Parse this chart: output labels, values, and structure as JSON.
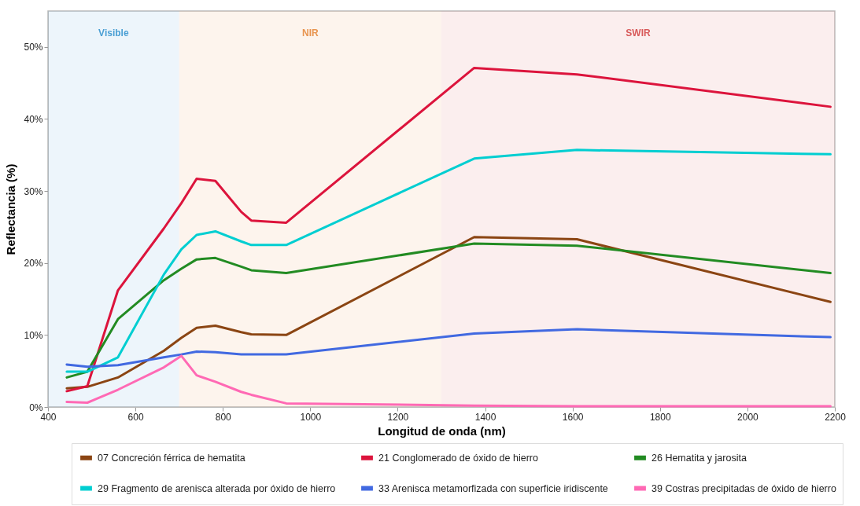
{
  "chart_data": {
    "type": "line",
    "xlabel": "Longitud de onda (nm)",
    "ylabel": "Reflectancia (%)",
    "x": [
      443,
      490,
      560,
      665,
      705,
      740,
      783,
      842,
      865,
      945,
      1375,
      1610,
      2190
    ],
    "series": [
      {
        "name": "07 Concreción férrica de hematita",
        "color": "#8b4513",
        "values": [
          2.6,
          2.8,
          4.1,
          7.8,
          9.6,
          11.0,
          11.3,
          10.4,
          10.1,
          10.0,
          23.6,
          23.3,
          14.6
        ]
      },
      {
        "name": "21 Conglomerado de óxido de hierro",
        "color": "#dc143c",
        "values": [
          2.2,
          2.9,
          16.2,
          24.8,
          28.3,
          31.7,
          31.4,
          27.1,
          25.9,
          25.6,
          47.1,
          46.2,
          41.7
        ]
      },
      {
        "name": "26 Hematita y jarosita",
        "color": "#228b22",
        "values": [
          4.1,
          4.9,
          12.2,
          17.6,
          19.2,
          20.5,
          20.7,
          19.5,
          19.0,
          18.6,
          22.7,
          22.4,
          18.6
        ]
      },
      {
        "name": "29 Fragmento de arenisca alterada por óxido de hierro",
        "color": "#00ced1",
        "values": [
          4.9,
          4.9,
          6.9,
          18.4,
          21.9,
          23.9,
          24.4,
          23.0,
          22.5,
          22.5,
          34.5,
          35.7,
          35.1
        ]
      },
      {
        "name": "33 Arenisca metamorfizada con superficie iridiscente",
        "color": "#4169e1",
        "values": [
          5.9,
          5.6,
          5.8,
          6.9,
          7.3,
          7.7,
          7.6,
          7.3,
          7.3,
          7.3,
          10.2,
          10.8,
          9.7
        ]
      },
      {
        "name": "39 Costras precipitadas de óxido de hierro",
        "color": "#ff69b4",
        "values": [
          0.7,
          0.6,
          2.4,
          5.5,
          7.1,
          4.4,
          3.5,
          2.1,
          1.7,
          0.5,
          0.2,
          0.1,
          0.1
        ]
      }
    ],
    "xlim": [
      400,
      2200
    ],
    "xticks": [
      400,
      600,
      800,
      1000,
      1200,
      1400,
      1600,
      1800,
      2000,
      2200
    ],
    "ylim": [
      0,
      55
    ],
    "yticks": [
      {
        "value": 0,
        "label": "0%"
      },
      {
        "value": 10,
        "label": "10%"
      },
      {
        "value": 20,
        "label": "20%"
      },
      {
        "value": 30,
        "label": "30%"
      },
      {
        "value": 40,
        "label": "40%"
      },
      {
        "value": 50,
        "label": "50%"
      }
    ],
    "bands": [
      {
        "axis": "x",
        "from": 400,
        "to": 700,
        "label": "Visible",
        "color": "#4a9fd4"
      },
      {
        "axis": "x",
        "from": 700,
        "to": 1300,
        "label": "NIR",
        "color": "#e8944f"
      },
      {
        "axis": "x",
        "from": 1300,
        "to": 2200,
        "label": "SWIR",
        "color": "#d85a5a"
      }
    ],
    "grid": false,
    "legend": "bottom",
    "line_style": "solid"
  }
}
